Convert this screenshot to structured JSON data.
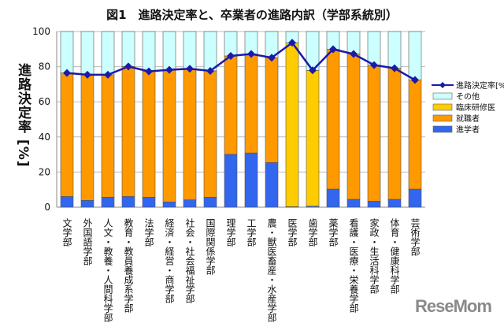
{
  "chart_data": {
    "type": "bar",
    "stacked": true,
    "title": "図1　進路決定率と、卒業者の進路内訳（学部系統別）",
    "ylabel": "進路決定率 [%]",
    "xlabel": "",
    "ylim": [
      0,
      100
    ],
    "yticks": [
      0,
      20,
      40,
      60,
      80,
      100
    ],
    "grid": true,
    "legend_position": "right",
    "categories": [
      "文学部",
      "外国語学部",
      "人文・教養・人間科学部",
      "教育・教員養成系学部",
      "法学部",
      "経済・経営・商学部",
      "社会・社会福祉学部",
      "国際関係学部",
      "理学部",
      "工学部",
      "農・獣医畜産・水産学部",
      "医学部",
      "歯学部",
      "薬学部",
      "看護・医療・栄養学部",
      "家政・生活科学部",
      "体育・健康科学部",
      "芸術学部"
    ],
    "series": [
      {
        "name": "進学者",
        "type": "bar",
        "color": "#3366ee",
        "values": [
          6.1,
          3.9,
          5.7,
          6.1,
          5.7,
          3.0,
          4.2,
          5.7,
          30.1,
          30.9,
          25.4,
          0.3,
          0.6,
          10.3,
          4.5,
          3.4,
          4.5,
          10.3
        ]
      },
      {
        "name": "就職者",
        "type": "bar",
        "color": "#ff9900",
        "values": [
          70.3,
          71.5,
          69.7,
          74.0,
          71.6,
          75.2,
          74.6,
          71.9,
          56.0,
          56.3,
          59.7,
          0,
          0,
          79.6,
          82.7,
          77.5,
          74.6,
          62.1
        ]
      },
      {
        "name": "臨床研修医",
        "type": "bar",
        "color": "#ffcc00",
        "values": [
          0,
          0,
          0,
          0,
          0,
          0,
          0,
          0,
          0,
          0,
          0,
          93.3,
          77.3,
          0,
          0,
          0,
          0,
          0
        ]
      },
      {
        "name": "その他",
        "type": "bar",
        "color": "#ccffff",
        "values": [
          23.6,
          24.6,
          24.6,
          19.9,
          22.7,
          21.8,
          21.2,
          22.4,
          13.9,
          12.8,
          14.9,
          6.4,
          22.1,
          10.1,
          12.8,
          19.1,
          20.9,
          27.6
        ]
      },
      {
        "name": "進路決定率[%]",
        "type": "line",
        "color": "#1a1aaa",
        "values": [
          76.4,
          75.4,
          75.4,
          80.1,
          77.3,
          78.2,
          78.8,
          77.6,
          86.1,
          87.2,
          85.1,
          93.6,
          77.9,
          89.9,
          87.2,
          80.9,
          79.1,
          72.4
        ]
      }
    ]
  },
  "legend_order": [
    "進路決定率[%]",
    "その他",
    "臨床研修医",
    "就職者",
    "進学者"
  ],
  "logo": "ReseMom"
}
